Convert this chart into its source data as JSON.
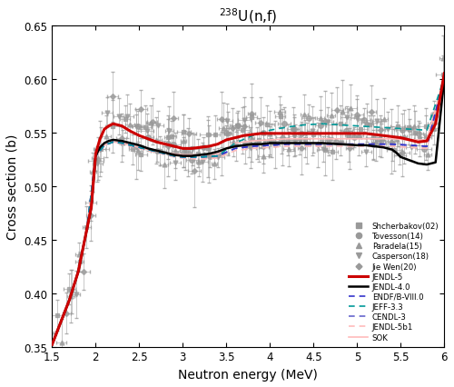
{
  "title": "$^{238}$U(n,f)",
  "xlabel": "Neutron energy (MeV)",
  "ylabel": "Cross section (b)",
  "xlim": [
    1.5,
    6.0
  ],
  "ylim": [
    0.35,
    0.65
  ],
  "yticks": [
    0.35,
    0.4,
    0.45,
    0.5,
    0.55,
    0.6,
    0.65
  ],
  "jendl5_x": [
    1.5,
    1.6,
    1.7,
    1.8,
    1.85,
    1.9,
    1.95,
    2.0,
    2.05,
    2.1,
    2.15,
    2.2,
    2.3,
    2.4,
    2.5,
    2.6,
    2.7,
    2.8,
    2.9,
    3.0,
    3.1,
    3.2,
    3.3,
    3.4,
    3.5,
    3.6,
    3.7,
    3.8,
    3.9,
    4.0,
    4.2,
    4.4,
    4.6,
    4.8,
    5.0,
    5.1,
    5.2,
    5.3,
    5.4,
    5.5,
    5.6,
    5.7,
    5.8,
    5.9,
    6.0
  ],
  "jendl5_y": [
    0.352,
    0.373,
    0.394,
    0.42,
    0.44,
    0.46,
    0.48,
    0.53,
    0.544,
    0.553,
    0.556,
    0.558,
    0.556,
    0.551,
    0.547,
    0.544,
    0.541,
    0.539,
    0.537,
    0.535,
    0.535,
    0.536,
    0.537,
    0.539,
    0.543,
    0.545,
    0.547,
    0.548,
    0.549,
    0.549,
    0.549,
    0.549,
    0.549,
    0.549,
    0.549,
    0.549,
    0.548,
    0.547,
    0.546,
    0.545,
    0.543,
    0.541,
    0.542,
    0.558,
    0.605
  ],
  "jendl40_x": [
    1.5,
    1.6,
    1.7,
    1.8,
    1.85,
    1.9,
    1.95,
    2.0,
    2.05,
    2.1,
    2.15,
    2.2,
    2.3,
    2.4,
    2.5,
    2.6,
    2.7,
    2.8,
    2.9,
    3.0,
    3.1,
    3.2,
    3.3,
    3.4,
    3.5,
    3.6,
    3.7,
    3.8,
    3.9,
    4.0,
    4.2,
    4.4,
    4.6,
    4.8,
    5.0,
    5.1,
    5.2,
    5.3,
    5.4,
    5.45,
    5.5,
    5.6,
    5.7,
    5.8,
    5.9,
    6.0
  ],
  "jendl40_y": [
    0.352,
    0.373,
    0.394,
    0.42,
    0.44,
    0.46,
    0.48,
    0.528,
    0.536,
    0.54,
    0.542,
    0.543,
    0.542,
    0.54,
    0.538,
    0.535,
    0.533,
    0.531,
    0.529,
    0.528,
    0.528,
    0.529,
    0.53,
    0.532,
    0.535,
    0.537,
    0.538,
    0.539,
    0.539,
    0.54,
    0.54,
    0.54,
    0.54,
    0.539,
    0.538,
    0.538,
    0.537,
    0.536,
    0.534,
    0.531,
    0.527,
    0.524,
    0.521,
    0.52,
    0.522,
    0.601
  ],
  "endfb_x": [
    1.5,
    1.6,
    1.7,
    1.8,
    1.9,
    2.0,
    2.1,
    2.2,
    2.3,
    2.4,
    2.5,
    2.6,
    2.7,
    2.8,
    2.9,
    3.0,
    3.2,
    3.4,
    3.6,
    3.8,
    4.0,
    4.2,
    4.4,
    4.6,
    4.8,
    5.0,
    5.2,
    5.4,
    5.6,
    5.8,
    6.0
  ],
  "endfb_y": [
    0.352,
    0.373,
    0.394,
    0.42,
    0.46,
    0.528,
    0.538,
    0.541,
    0.54,
    0.538,
    0.536,
    0.534,
    0.532,
    0.53,
    0.528,
    0.527,
    0.527,
    0.528,
    0.535,
    0.537,
    0.538,
    0.539,
    0.539,
    0.539,
    0.539,
    0.539,
    0.539,
    0.539,
    0.538,
    0.537,
    0.601
  ],
  "jeff33_x": [
    1.5,
    1.6,
    1.7,
    1.8,
    1.9,
    2.0,
    2.1,
    2.2,
    2.3,
    2.4,
    2.5,
    2.6,
    2.7,
    2.8,
    2.9,
    3.0,
    3.2,
    3.4,
    3.6,
    3.8,
    4.0,
    4.2,
    4.4,
    4.6,
    4.8,
    5.0,
    5.2,
    5.4,
    5.6,
    5.8,
    6.0
  ],
  "jeff33_y": [
    0.352,
    0.373,
    0.394,
    0.42,
    0.46,
    0.528,
    0.538,
    0.541,
    0.54,
    0.538,
    0.536,
    0.534,
    0.532,
    0.53,
    0.528,
    0.527,
    0.527,
    0.528,
    0.54,
    0.547,
    0.552,
    0.555,
    0.557,
    0.558,
    0.557,
    0.556,
    0.555,
    0.554,
    0.553,
    0.552,
    0.601
  ],
  "cendl3_x": [
    1.5,
    1.6,
    1.7,
    1.8,
    1.9,
    2.0,
    2.1,
    2.2,
    2.3,
    2.4,
    2.5,
    2.6,
    2.7,
    2.8,
    2.9,
    3.0,
    3.2,
    3.4,
    3.6,
    3.8,
    4.0,
    4.2,
    4.4,
    4.6,
    4.8,
    5.0,
    5.2,
    5.4,
    5.6,
    5.8,
    6.0
  ],
  "cendl3_y": [
    0.352,
    0.373,
    0.394,
    0.42,
    0.46,
    0.528,
    0.538,
    0.541,
    0.54,
    0.538,
    0.536,
    0.534,
    0.532,
    0.53,
    0.528,
    0.527,
    0.527,
    0.528,
    0.535,
    0.537,
    0.538,
    0.539,
    0.539,
    0.539,
    0.539,
    0.539,
    0.539,
    0.539,
    0.538,
    0.537,
    0.601
  ],
  "jendl5b1_x": [
    1.5,
    1.6,
    1.7,
    1.8,
    1.9,
    2.0,
    2.1,
    2.2,
    2.3,
    2.4,
    2.5,
    2.6,
    2.7,
    2.8,
    2.9,
    3.0,
    3.2,
    3.4,
    3.6,
    3.8,
    4.0,
    4.2,
    4.4,
    4.6,
    4.8,
    5.0,
    5.2,
    5.4,
    5.6,
    5.8,
    6.0
  ],
  "jendl5b1_y": [
    0.352,
    0.373,
    0.394,
    0.42,
    0.46,
    0.528,
    0.538,
    0.541,
    0.539,
    0.537,
    0.535,
    0.533,
    0.531,
    0.529,
    0.527,
    0.526,
    0.525,
    0.526,
    0.533,
    0.535,
    0.536,
    0.537,
    0.537,
    0.537,
    0.537,
    0.537,
    0.537,
    0.537,
    0.536,
    0.535,
    0.601
  ],
  "sok_x": [
    1.5,
    1.6,
    1.7,
    1.8,
    1.9,
    2.0,
    2.1,
    2.2,
    2.3,
    2.4,
    2.5,
    2.6,
    2.7,
    2.8,
    2.9,
    3.0,
    3.2,
    3.4,
    3.6,
    3.8,
    4.0,
    4.2,
    4.4,
    4.6,
    4.8,
    5.0,
    5.2,
    5.4,
    5.6,
    5.8,
    6.0
  ],
  "sok_y": [
    0.352,
    0.373,
    0.394,
    0.42,
    0.46,
    0.528,
    0.538,
    0.541,
    0.54,
    0.538,
    0.536,
    0.534,
    0.533,
    0.531,
    0.53,
    0.529,
    0.529,
    0.53,
    0.54,
    0.542,
    0.543,
    0.544,
    0.544,
    0.544,
    0.544,
    0.544,
    0.544,
    0.544,
    0.543,
    0.543,
    0.601
  ],
  "jendl5_color": "#cc0000",
  "jendl40_color": "#000000",
  "endfb_color": "#3333cc",
  "jeff33_color": "#009999",
  "cendl3_color": "#6666cc",
  "jendl5b1_color": "#ffbbbb",
  "sok_color": "#ffbbbb",
  "exp_color": "#999999"
}
